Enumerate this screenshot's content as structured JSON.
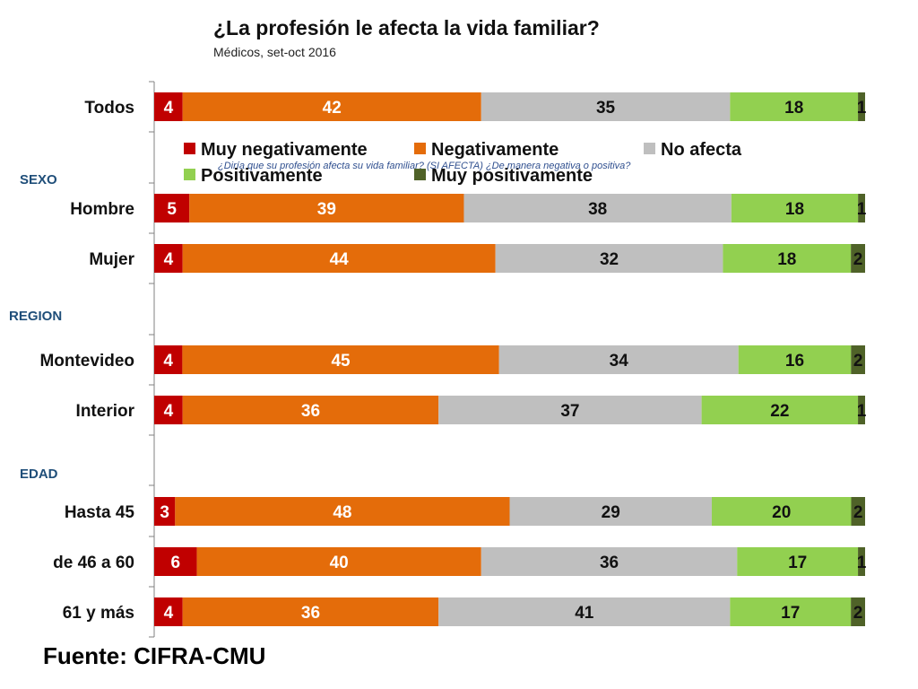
{
  "header": {
    "title": "¿La profesión le afecta la vida familiar?",
    "subtitle": "Médicos, set-oct 2016"
  },
  "question_note": "¿Diría que su profesión afecta su vida familiar? (SI AFECTA) ¿De manera negativa o positiva?",
  "footer": {
    "source": "Fuente: CIFRA-CMU"
  },
  "colors": {
    "muy_negativamente": "#c00000",
    "negativamente": "#e46c0a",
    "no_afecta": "#bfbfbf",
    "positivamente": "#92d050",
    "muy_positivamente": "#4f6228",
    "group_label": "#1f4e79"
  },
  "chart_data": {
    "type": "bar",
    "orientation": "horizontal",
    "stacked": true,
    "legend_position": "top",
    "categories": [
      "Todos",
      "Hombre",
      "Mujer",
      "Montevideo",
      "Interior",
      "Hasta 45",
      "de 46 a 60",
      "61 y más"
    ],
    "groups": [
      {
        "label": "SEXO",
        "before": "Hombre"
      },
      {
        "label": "REGION",
        "before": "Montevideo"
      },
      {
        "label": "EDAD",
        "before": "Hasta 45"
      }
    ],
    "series": [
      {
        "name": "Muy negativamente",
        "values": [
          4,
          5,
          4,
          4,
          4,
          3,
          6,
          4
        ]
      },
      {
        "name": "Negativamente",
        "values": [
          42,
          39,
          44,
          45,
          36,
          48,
          40,
          36
        ]
      },
      {
        "name": "No afecta",
        "values": [
          35,
          38,
          32,
          34,
          37,
          29,
          36,
          41
        ]
      },
      {
        "name": "Positivamente",
        "values": [
          18,
          18,
          18,
          16,
          22,
          20,
          17,
          17
        ]
      },
      {
        "name": "Muy positivamente",
        "values": [
          1,
          1,
          2,
          2,
          1,
          2,
          1,
          2
        ]
      }
    ]
  }
}
